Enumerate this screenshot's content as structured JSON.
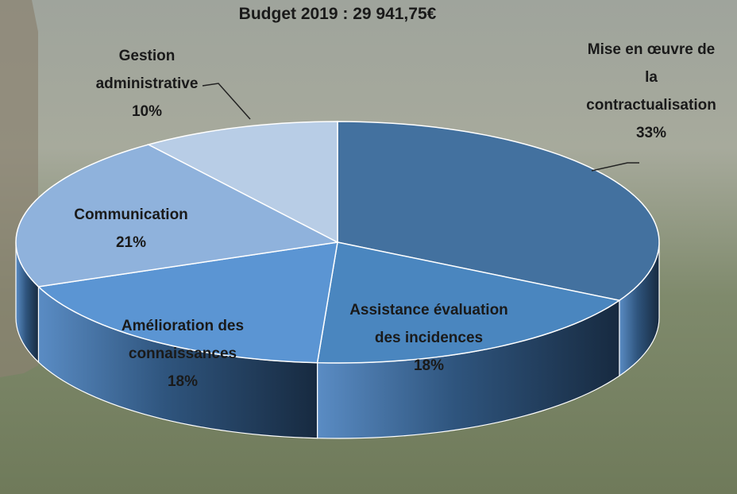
{
  "chart_data": {
    "type": "pie",
    "title": "Budget 2019 : 29 941,75€",
    "categories": [
      "Mise en œuvre de la contractualisation",
      "Assistance évaluation des incidences",
      "Amélioration des connaissances",
      "Communication",
      "Gestion administrative"
    ],
    "values": [
      33,
      18,
      18,
      21,
      10
    ],
    "value_labels": [
      "33%",
      "18%",
      "18%",
      "21%",
      "10%"
    ],
    "colors": [
      "#43719f",
      "#4a86bf",
      "#5b95d3",
      "#8fb2dc",
      "#b8cde6"
    ]
  }
}
